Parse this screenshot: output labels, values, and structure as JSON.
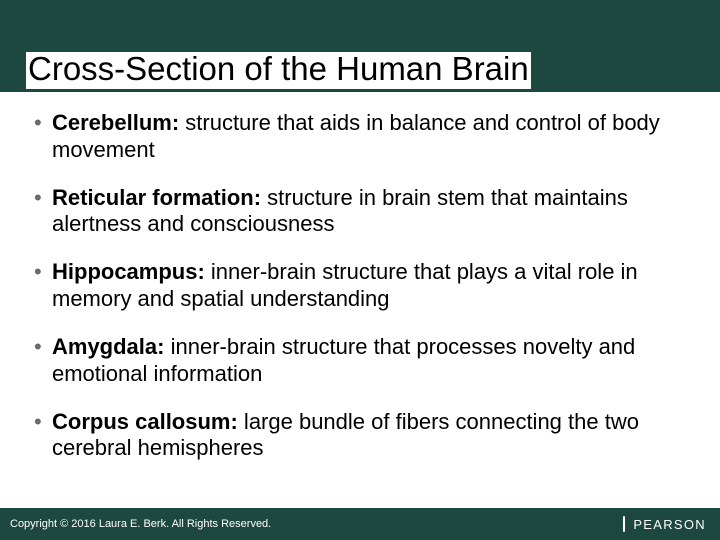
{
  "colors": {
    "header_bg": "#1c4840",
    "footer_bg": "#1c4840",
    "title_bg": "#ffffff",
    "title_color": "#000000",
    "body_text": "#000000",
    "bullet_color": "#6b6b6b",
    "footer_text": "#ffffff"
  },
  "typography": {
    "title_fontsize": 33,
    "body_fontsize": 22,
    "copyright_fontsize": 11,
    "logo_fontsize": 13
  },
  "title": "Cross-Section of the Human Brain",
  "bullets": [
    {
      "term": "Cerebellum:",
      "desc": " structure that aids in balance and control of body movement"
    },
    {
      "term": "Reticular formation:",
      "desc": " structure in brain stem that maintains alertness and consciousness"
    },
    {
      "term": "Hippocampus:",
      "desc": " inner-brain structure that plays a vital role in memory and spatial understanding"
    },
    {
      "term": "Amygdala:",
      "desc": " inner-brain structure that processes novelty and emotional information"
    },
    {
      "term": "Corpus callosum:",
      "desc": " large bundle of fibers connecting the two cerebral hemispheres"
    }
  ],
  "copyright": "Copyright © 2016 Laura E. Berk. All Rights Reserved.",
  "logo_text": "PEARSON"
}
